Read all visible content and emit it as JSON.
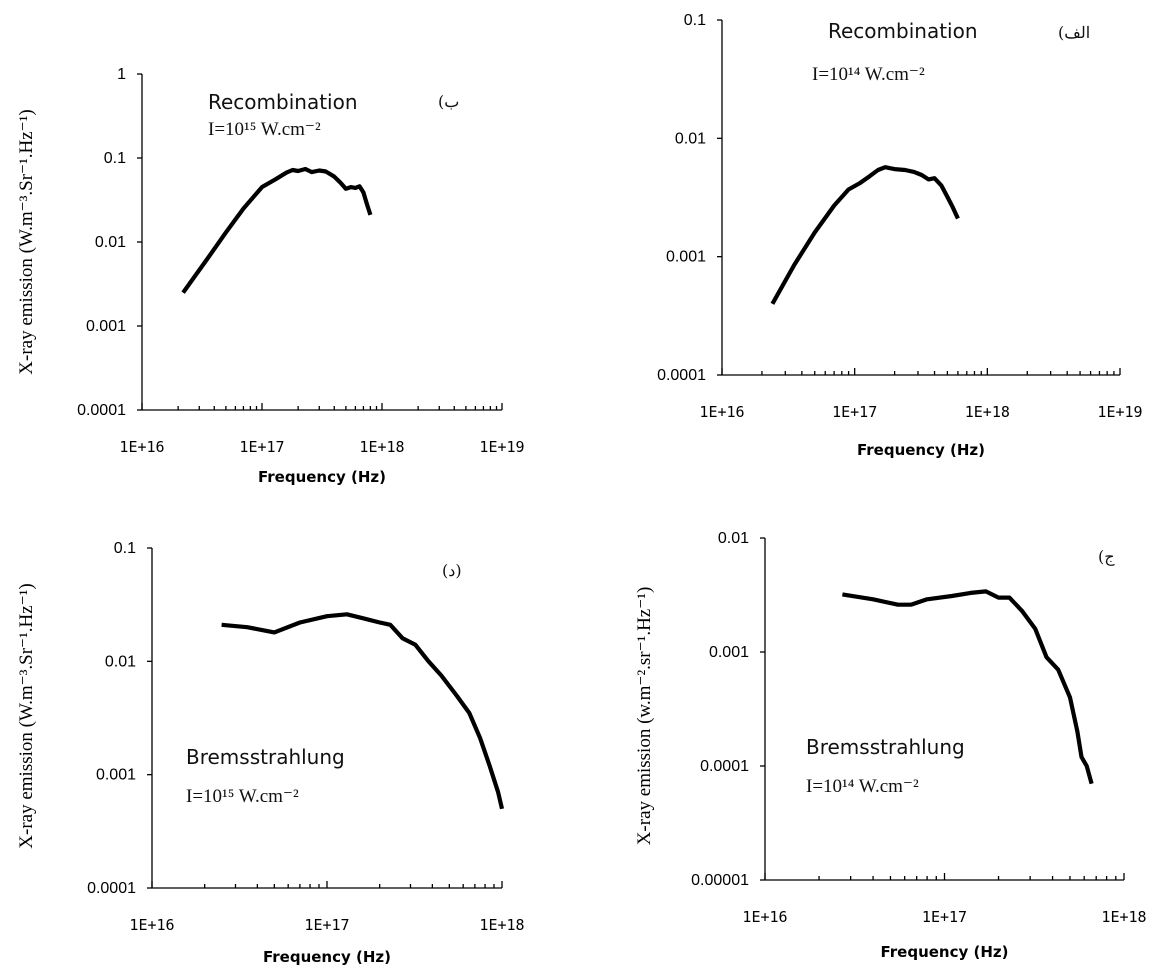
{
  "chart_data": [
    {
      "id": "b",
      "type": "line",
      "x_scale": "log",
      "y_scale": "log",
      "xlim": [
        1e+16,
        1e+19
      ],
      "ylim": [
        0.0001,
        1
      ],
      "x_ticks": [
        "1E+16",
        "1E+17",
        "1E+18",
        "1E+19"
      ],
      "y_ticks": [
        "1",
        "0.1",
        "0.01",
        "0.001",
        "0.0001"
      ],
      "xlabel": "Frequency (Hz)",
      "ylabel": "X-ray emission (W.m⁻³.Sr⁻¹.Hz⁻¹)",
      "annotation_title": "Recombination",
      "annotation_intensity": "I=10¹⁵ W.cm⁻²",
      "panel_tag": "(ب",
      "series": [
        {
          "x": [
            2.2e+16,
            3.5e+16,
            5e+16,
            7e+16,
            1e+17,
            1.3e+17,
            1.6e+17,
            1.8e+17,
            2e+17,
            2.3e+17,
            2.6e+17,
            3e+17,
            3.4e+17,
            4e+17,
            4.5e+17,
            5e+17,
            5.5e+17,
            6e+17,
            6.5e+17,
            7e+17,
            7.5e+17,
            8e+17
          ],
          "y": [
            0.0025,
            0.0063,
            0.013,
            0.025,
            0.045,
            0.056,
            0.067,
            0.072,
            0.07,
            0.074,
            0.068,
            0.071,
            0.069,
            0.06,
            0.051,
            0.043,
            0.045,
            0.044,
            0.046,
            0.039,
            0.028,
            0.021
          ]
        }
      ]
    },
    {
      "id": "alef",
      "type": "line",
      "x_scale": "log",
      "y_scale": "log",
      "xlim": [
        1e+16,
        1e+19
      ],
      "ylim": [
        0.0001,
        0.1
      ],
      "x_ticks": [
        "1E+16",
        "1E+17",
        "1E+18",
        "1E+19"
      ],
      "y_ticks": [
        "0.1",
        "0.01",
        "0.001",
        "0.0001"
      ],
      "xlabel": "Frequency (Hz)",
      "ylabel": "",
      "annotation_title": "Recombination",
      "annotation_intensity": "I=10¹⁴ W.cm⁻²",
      "panel_tag": "(الف",
      "series": [
        {
          "x": [
            2.4e+16,
            3.5e+16,
            5e+16,
            7e+16,
            9e+16,
            1.1e+17,
            1.3e+17,
            1.5e+17,
            1.7e+17,
            2e+17,
            2.4e+17,
            2.8e+17,
            3.2e+17,
            3.6e+17,
            4e+17,
            4.5e+17,
            5e+17,
            5.5e+17,
            6e+17
          ],
          "y": [
            0.0004,
            0.00085,
            0.0016,
            0.0027,
            0.0037,
            0.0042,
            0.0048,
            0.0054,
            0.0057,
            0.0055,
            0.0054,
            0.0052,
            0.0049,
            0.0045,
            0.0046,
            0.004,
            0.0032,
            0.0026,
            0.0021
          ]
        }
      ]
    },
    {
      "id": "d",
      "type": "line",
      "x_scale": "log",
      "y_scale": "log",
      "xlim": [
        1e+16,
        1e+18
      ],
      "ylim": [
        0.0001,
        0.1
      ],
      "x_ticks": [
        "1E+16",
        "1E+17",
        "1E+18"
      ],
      "y_ticks": [
        "0.1",
        "0.01",
        "0.001",
        "0.0001"
      ],
      "xlabel": "Frequency (Hz)",
      "ylabel": "X-ray emission (W.m⁻³.Sr⁻¹.Hz⁻¹)",
      "annotation_title": "Bremsstrahlung",
      "annotation_intensity": "I=10¹⁵ W.cm⁻²",
      "panel_tag": "(د)",
      "series": [
        {
          "x": [
            2.5e+16,
            3.5e+16,
            5e+16,
            7e+16,
            1e+17,
            1.3e+17,
            1.6e+17,
            2e+17,
            2.3e+17,
            2.7e+17,
            3.2e+17,
            3.8e+17,
            4.5e+17,
            5.5e+17,
            6.5e+17,
            7.5e+17,
            8.5e+17,
            9.5e+17,
            1e+18
          ],
          "y": [
            0.021,
            0.02,
            0.018,
            0.022,
            0.025,
            0.026,
            0.024,
            0.022,
            0.021,
            0.016,
            0.014,
            0.01,
            0.0075,
            0.005,
            0.0035,
            0.0021,
            0.0012,
            0.0007,
            0.0005
          ]
        }
      ]
    },
    {
      "id": "j",
      "type": "line",
      "x_scale": "log",
      "y_scale": "log",
      "xlim": [
        1e+16,
        1e+18
      ],
      "ylim": [
        1e-05,
        0.01
      ],
      "x_ticks": [
        "1E+16",
        "1E+17",
        "1E+18"
      ],
      "y_ticks": [
        "0.01",
        "0.001",
        "0.0001",
        "0.00001"
      ],
      "xlabel": "Frequency (Hz)",
      "ylabel": "X-ray emission (w.m⁻².sr⁻¹.Hz⁻¹)",
      "annotation_title": "Bremsstrahlung",
      "annotation_intensity": "I=10¹⁴ W.cm⁻²",
      "panel_tag": "(ج",
      "series": [
        {
          "x": [
            2.7e+16,
            4e+16,
            5.5e+16,
            6.5e+16,
            8e+16,
            1.1e+17,
            1.4e+17,
            1.7e+17,
            2e+17,
            2.3e+17,
            2.7e+17,
            3.2e+17,
            3.7e+17,
            4.3e+17,
            5e+17,
            5.5e+17,
            5.8e+17,
            6.2e+17,
            6.6e+17
          ],
          "y": [
            0.0032,
            0.0029,
            0.0026,
            0.0026,
            0.0029,
            0.0031,
            0.0033,
            0.0034,
            0.003,
            0.003,
            0.0023,
            0.0016,
            0.0009,
            0.0007,
            0.0004,
            0.0002,
            0.00012,
            0.0001,
            7e-05
          ]
        }
      ]
    }
  ]
}
